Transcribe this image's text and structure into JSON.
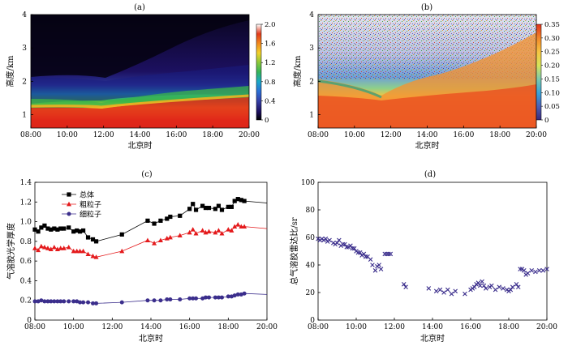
{
  "chart_data": [
    {
      "panel": "(a)",
      "type": "heatmap",
      "xlabel": "北京时",
      "ylabel": "高度/km",
      "x_ticks": [
        "08:00",
        "10:00",
        "12:00",
        "14:00",
        "16:00",
        "18:00",
        "20:00"
      ],
      "y_ticks": [
        "1",
        "2",
        "3",
        "4"
      ],
      "ylim": [
        0.6,
        4
      ],
      "colorbar": {
        "ticks": [
          "0",
          "0.4",
          "0.8",
          "1.2",
          "1.6",
          "2.0"
        ],
        "range": [
          0,
          2.0
        ]
      },
      "colors": {
        "low": "#140a4d",
        "mid": "#39b54a",
        "high": "#d7191c"
      }
    },
    {
      "panel": "(b)",
      "type": "heatmap",
      "xlabel": "北京时",
      "ylabel": "高度/km",
      "x_ticks": [
        "08:00",
        "10:00",
        "12:00",
        "14:00",
        "16:00",
        "18:00",
        "20:00"
      ],
      "y_ticks": [
        "1",
        "2",
        "3",
        "4"
      ],
      "ylim": [
        0.6,
        4
      ],
      "colorbar": {
        "ticks": [
          "0",
          "0.05",
          "0.10",
          "0.15",
          "0.20",
          "0.25",
          "0.30",
          "0.35"
        ],
        "range": [
          0,
          0.35
        ]
      },
      "colors": {
        "low": "#4b3d8f",
        "mid": "#f0e442",
        "high": "#e8421a"
      }
    },
    {
      "panel": "(c)",
      "type": "line",
      "xlabel": "北京时",
      "ylabel": "气溶胶光学厚度",
      "x_ticks": [
        "08:00",
        "10:00",
        "12:00",
        "14:00",
        "16:00",
        "18:00",
        "20:00"
      ],
      "y_ticks": [
        "0",
        "0.2",
        "0.4",
        "0.6",
        "0.8",
        "1.0",
        "1.2",
        "1.4"
      ],
      "xlim": [
        8,
        20
      ],
      "ylim": [
        0,
        1.4
      ],
      "legend_position": "top-left",
      "series": [
        {
          "name": "总体",
          "marker": "square",
          "color": "#000000",
          "x": [
            8.0,
            8.17,
            8.33,
            8.5,
            8.67,
            8.83,
            9.0,
            9.17,
            9.33,
            9.5,
            9.75,
            10.0,
            10.17,
            10.33,
            10.5,
            10.75,
            11.0,
            11.17,
            12.5,
            13.83,
            14.17,
            14.5,
            14.83,
            15.0,
            15.5,
            16.0,
            16.17,
            16.33,
            16.67,
            16.83,
            17.0,
            17.33,
            17.5,
            17.67,
            18.0,
            18.17,
            18.33,
            18.5,
            18.67,
            18.83,
            20.0
          ],
          "y": [
            0.92,
            0.9,
            0.94,
            0.96,
            0.93,
            0.92,
            0.93,
            0.92,
            0.93,
            0.93,
            0.94,
            0.9,
            0.91,
            0.9,
            0.91,
            0.84,
            0.82,
            0.8,
            0.87,
            1.01,
            0.98,
            1.01,
            1.03,
            1.05,
            1.06,
            1.13,
            1.18,
            1.12,
            1.16,
            1.14,
            1.14,
            1.13,
            1.16,
            1.12,
            1.15,
            1.15,
            1.21,
            1.23,
            1.22,
            1.21,
            1.19
          ]
        },
        {
          "name": "粗粒子",
          "marker": "triangle",
          "color": "#e41a1c",
          "x": [
            8.0,
            8.17,
            8.33,
            8.5,
            8.67,
            8.83,
            9.0,
            9.17,
            9.33,
            9.5,
            9.75,
            10.0,
            10.17,
            10.33,
            10.5,
            10.75,
            11.0,
            11.17,
            12.5,
            13.83,
            14.17,
            14.5,
            14.83,
            15.0,
            15.5,
            16.0,
            16.17,
            16.33,
            16.67,
            16.83,
            17.0,
            17.33,
            17.5,
            17.67,
            18.0,
            18.17,
            18.33,
            18.5,
            18.67,
            18.83,
            20.0
          ],
          "y": [
            0.73,
            0.71,
            0.75,
            0.74,
            0.73,
            0.72,
            0.74,
            0.72,
            0.73,
            0.73,
            0.74,
            0.7,
            0.7,
            0.7,
            0.7,
            0.67,
            0.65,
            0.64,
            0.7,
            0.81,
            0.78,
            0.81,
            0.83,
            0.84,
            0.86,
            0.89,
            0.92,
            0.88,
            0.91,
            0.89,
            0.9,
            0.89,
            0.91,
            0.88,
            0.92,
            0.91,
            0.95,
            0.97,
            0.95,
            0.95,
            0.93
          ]
        },
        {
          "name": "细粒子",
          "marker": "circle",
          "color": "#3b2e8c",
          "x": [
            8.0,
            8.17,
            8.33,
            8.5,
            8.67,
            8.83,
            9.0,
            9.17,
            9.33,
            9.5,
            9.75,
            10.0,
            10.17,
            10.33,
            10.5,
            10.75,
            11.0,
            11.17,
            12.5,
            13.83,
            14.17,
            14.5,
            14.83,
            15.0,
            15.5,
            16.0,
            16.17,
            16.33,
            16.67,
            16.83,
            17.0,
            17.33,
            17.5,
            17.67,
            18.0,
            18.17,
            18.33,
            18.5,
            18.67,
            18.83,
            20.0
          ],
          "y": [
            0.19,
            0.19,
            0.2,
            0.19,
            0.19,
            0.19,
            0.19,
            0.19,
            0.19,
            0.19,
            0.19,
            0.19,
            0.19,
            0.18,
            0.18,
            0.18,
            0.17,
            0.17,
            0.18,
            0.2,
            0.2,
            0.2,
            0.21,
            0.21,
            0.21,
            0.22,
            0.22,
            0.22,
            0.22,
            0.23,
            0.23,
            0.23,
            0.23,
            0.23,
            0.24,
            0.24,
            0.25,
            0.26,
            0.26,
            0.27,
            0.26
          ]
        }
      ]
    },
    {
      "panel": "(d)",
      "type": "scatter",
      "xlabel": "北京时",
      "ylabel": "总气溶胶雷达比/sr",
      "x_ticks": [
        "08:00",
        "10:00",
        "12:00",
        "14:00",
        "16:00",
        "18:00",
        "20:00"
      ],
      "y_ticks": [
        "0",
        "20",
        "40",
        "60",
        "80",
        "100"
      ],
      "xlim": [
        8,
        20
      ],
      "ylim": [
        0,
        100
      ],
      "marker": "x",
      "color": "#3b2e8c",
      "x": [
        8.0,
        8.1,
        8.2,
        8.3,
        8.4,
        8.5,
        8.6,
        8.8,
        8.9,
        9.0,
        9.1,
        9.2,
        9.3,
        9.4,
        9.5,
        9.6,
        9.7,
        9.8,
        9.9,
        10.0,
        10.1,
        10.2,
        10.3,
        10.4,
        10.5,
        10.6,
        10.75,
        10.85,
        11.0,
        11.1,
        11.2,
        11.3,
        11.5,
        11.6,
        11.7,
        11.8,
        12.5,
        12.6,
        13.8,
        14.2,
        14.4,
        14.6,
        14.8,
        15.0,
        15.2,
        15.7,
        16.0,
        16.1,
        16.2,
        16.3,
        16.4,
        16.5,
        16.6,
        16.7,
        16.8,
        17.0,
        17.1,
        17.3,
        17.5,
        17.7,
        17.9,
        18.0,
        18.1,
        18.2,
        18.4,
        18.5,
        18.6,
        18.7,
        18.8,
        18.9,
        19.0,
        19.2,
        19.4,
        19.6,
        19.8,
        20.0
      ],
      "y": [
        59,
        58,
        59,
        58,
        59,
        57,
        58,
        56,
        55,
        56,
        58,
        54,
        55,
        55,
        53,
        53,
        54,
        52,
        52,
        50,
        49,
        49,
        47,
        48,
        46,
        46,
        44,
        40,
        36,
        39,
        40,
        37,
        48,
        48,
        48,
        48,
        26,
        24,
        23,
        21,
        22,
        20,
        22,
        19,
        21,
        19,
        22,
        23,
        24,
        26,
        27,
        25,
        28,
        25,
        23,
        24,
        25,
        22,
        24,
        23,
        22,
        21,
        22,
        24,
        26,
        24,
        37,
        37,
        36,
        33,
        34,
        36,
        35,
        36,
        36,
        37
      ]
    }
  ]
}
